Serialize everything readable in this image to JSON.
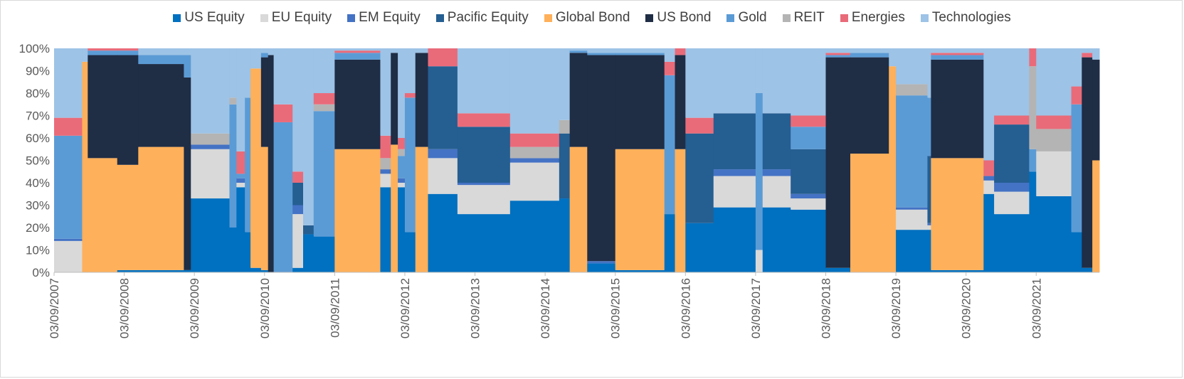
{
  "chart_data": {
    "type": "area",
    "stacked": true,
    "percent": true,
    "title": "",
    "xlabel": "",
    "ylabel": "",
    "ylim": [
      0,
      100
    ],
    "y_ticks": [
      "0%",
      "10%",
      "20%",
      "30%",
      "40%",
      "50%",
      "60%",
      "70%",
      "80%",
      "90%",
      "100%"
    ],
    "x_ticks": [
      "03/09/2007",
      "03/09/2008",
      "03/09/2009",
      "03/09/2010",
      "03/09/2011",
      "03/09/2012",
      "03/09/2013",
      "03/09/2014",
      "03/09/2015",
      "03/09/2016",
      "03/09/2017",
      "03/09/2018",
      "03/09/2019",
      "03/09/2020",
      "03/09/2021"
    ],
    "legend_position": "top",
    "grid": false,
    "series": [
      {
        "name": "US Equity",
        "color": "#0070C0"
      },
      {
        "name": "EU Equity",
        "color": "#D9D9D9"
      },
      {
        "name": "EM Equity",
        "color": "#4472C4"
      },
      {
        "name": "Pacific Equity",
        "color": "#255E91"
      },
      {
        "name": "Global Bond",
        "color": "#FFB05A"
      },
      {
        "name": "US Bond",
        "color": "#1F2D45"
      },
      {
        "name": "Gold",
        "color": "#5B9BD5"
      },
      {
        "name": "REIT",
        "color": "#B4B4B4"
      },
      {
        "name": "Energies",
        "color": "#E96B7A"
      },
      {
        "name": "Technologies",
        "color": "#9DC3E6"
      }
    ],
    "segments": [
      {
        "start": 2007.0,
        "end": 2007.4,
        "weights": [
          0,
          14,
          1,
          0,
          0,
          0,
          46,
          0,
          8,
          31
        ]
      },
      {
        "start": 2007.4,
        "end": 2007.48,
        "weights": [
          0,
          0,
          0,
          0,
          94,
          0,
          0,
          0,
          0,
          6
        ]
      },
      {
        "start": 2007.48,
        "end": 2007.9,
        "weights": [
          0,
          0,
          0,
          0,
          51,
          46,
          2,
          0,
          1,
          0
        ]
      },
      {
        "start": 2007.9,
        "end": 2008.2,
        "weights": [
          1,
          0,
          0,
          0,
          47,
          49,
          2,
          0,
          1,
          0
        ]
      },
      {
        "start": 2008.2,
        "end": 2008.85,
        "weights": [
          1,
          0,
          0,
          0,
          55,
          37,
          4,
          0,
          0,
          3
        ]
      },
      {
        "start": 2008.85,
        "end": 2008.95,
        "weights": [
          1,
          0,
          0,
          0,
          0,
          86,
          10,
          0,
          0,
          3
        ]
      },
      {
        "start": 2008.95,
        "end": 2009.5,
        "weights": [
          33,
          22,
          2,
          0,
          0,
          0,
          0,
          5,
          0,
          38
        ]
      },
      {
        "start": 2009.5,
        "end": 2009.6,
        "weights": [
          20,
          0,
          0,
          0,
          0,
          0,
          55,
          3,
          0,
          22
        ]
      },
      {
        "start": 2009.6,
        "end": 2009.72,
        "weights": [
          38,
          2,
          2,
          0,
          0,
          0,
          2,
          0,
          10,
          46
        ]
      },
      {
        "start": 2009.72,
        "end": 2009.8,
        "weights": [
          18,
          0,
          0,
          0,
          0,
          0,
          60,
          0,
          0,
          22
        ]
      },
      {
        "start": 2009.8,
        "end": 2009.95,
        "weights": [
          2,
          0,
          0,
          0,
          89,
          0,
          0,
          0,
          0,
          9
        ]
      },
      {
        "start": 2009.95,
        "end": 2010.05,
        "weights": [
          1,
          0,
          0,
          0,
          55,
          40,
          2,
          0,
          0,
          2
        ]
      },
      {
        "start": 2010.05,
        "end": 2010.13,
        "weights": [
          0,
          0,
          0,
          0,
          0,
          97,
          0,
          0,
          0,
          3
        ]
      },
      {
        "start": 2010.13,
        "end": 2010.4,
        "weights": [
          0,
          0,
          0,
          0,
          0,
          0,
          67,
          0,
          8,
          25
        ]
      },
      {
        "start": 2010.4,
        "end": 2010.55,
        "weights": [
          2,
          24,
          4,
          10,
          0,
          0,
          0,
          0,
          5,
          55
        ]
      },
      {
        "start": 2010.55,
        "end": 2010.7,
        "weights": [
          17,
          0,
          0,
          4,
          0,
          0,
          0,
          0,
          0,
          79
        ]
      },
      {
        "start": 2010.7,
        "end": 2011.0,
        "weights": [
          16,
          0,
          0,
          0,
          0,
          0,
          56,
          3,
          5,
          20
        ]
      },
      {
        "start": 2011.0,
        "end": 2011.65,
        "weights": [
          0,
          0,
          0,
          0,
          55,
          40,
          3,
          0,
          1,
          1
        ]
      },
      {
        "start": 2011.65,
        "end": 2011.8,
        "weights": [
          38,
          6,
          2,
          0,
          0,
          0,
          0,
          5,
          10,
          39
        ]
      },
      {
        "start": 2011.8,
        "end": 2011.9,
        "weights": [
          0,
          0,
          0,
          0,
          57,
          41,
          0,
          0,
          0,
          2
        ]
      },
      {
        "start": 2011.9,
        "end": 2012.0,
        "weights": [
          38,
          2,
          2,
          0,
          0,
          0,
          10,
          3,
          5,
          40
        ]
      },
      {
        "start": 2012.0,
        "end": 2012.15,
        "weights": [
          18,
          0,
          0,
          0,
          0,
          0,
          60,
          0,
          2,
          20
        ]
      },
      {
        "start": 2012.15,
        "end": 2012.33,
        "weights": [
          0,
          0,
          0,
          0,
          56,
          42,
          0,
          0,
          0,
          2
        ]
      },
      {
        "start": 2012.33,
        "end": 2012.75,
        "weights": [
          35,
          16,
          4,
          37,
          0,
          0,
          0,
          0,
          8,
          0
        ]
      },
      {
        "start": 2012.75,
        "end": 2013.5,
        "weights": [
          26,
          13,
          1,
          25,
          0,
          0,
          0,
          0,
          6,
          29
        ]
      },
      {
        "start": 2013.5,
        "end": 2014.2,
        "weights": [
          32,
          17,
          2,
          0,
          0,
          0,
          0,
          5,
          6,
          38
        ]
      },
      {
        "start": 2014.2,
        "end": 2014.35,
        "weights": [
          33,
          0,
          0,
          29,
          0,
          0,
          0,
          6,
          0,
          32
        ]
      },
      {
        "start": 2014.35,
        "end": 2014.6,
        "weights": [
          0,
          0,
          0,
          0,
          56,
          42,
          1,
          0,
          0,
          1
        ]
      },
      {
        "start": 2014.6,
        "end": 2015.0,
        "weights": [
          4,
          0,
          1,
          0,
          0,
          92,
          1,
          0,
          0,
          2
        ]
      },
      {
        "start": 2015.0,
        "end": 2015.7,
        "weights": [
          1,
          0,
          0,
          0,
          54,
          42,
          1,
          0,
          0,
          2
        ]
      },
      {
        "start": 2015.7,
        "end": 2015.85,
        "weights": [
          26,
          0,
          0,
          0,
          0,
          0,
          62,
          0,
          6,
          6
        ]
      },
      {
        "start": 2015.85,
        "end": 2016.0,
        "weights": [
          0,
          0,
          0,
          0,
          55,
          42,
          0,
          0,
          3,
          0
        ]
      },
      {
        "start": 2016.0,
        "end": 2016.4,
        "weights": [
          22,
          0,
          0,
          40,
          0,
          0,
          0,
          0,
          7,
          31
        ]
      },
      {
        "start": 2016.4,
        "end": 2017.0,
        "weights": [
          29,
          14,
          3,
          25,
          0,
          0,
          0,
          0,
          0,
          29
        ]
      },
      {
        "start": 2017.0,
        "end": 2017.1,
        "weights": [
          0,
          10,
          0,
          0,
          0,
          0,
          70,
          0,
          0,
          20
        ]
      },
      {
        "start": 2017.1,
        "end": 2017.5,
        "weights": [
          29,
          14,
          3,
          25,
          0,
          0,
          0,
          0,
          0,
          29
        ]
      },
      {
        "start": 2017.5,
        "end": 2018.0,
        "weights": [
          28,
          5,
          2,
          20,
          0,
          0,
          10,
          0,
          5,
          30
        ]
      },
      {
        "start": 2018.0,
        "end": 2018.35,
        "weights": [
          2,
          0,
          0,
          0,
          0,
          94,
          1,
          0,
          1,
          2
        ]
      },
      {
        "start": 2018.35,
        "end": 2018.9,
        "weights": [
          0,
          0,
          0,
          0,
          53,
          43,
          2,
          0,
          0,
          2
        ]
      },
      {
        "start": 2018.9,
        "end": 2019.0,
        "weights": [
          0,
          0,
          0,
          0,
          92,
          0,
          0,
          0,
          0,
          8
        ]
      },
      {
        "start": 2019.0,
        "end": 2019.45,
        "weights": [
          19,
          9,
          1,
          0,
          0,
          0,
          50,
          5,
          0,
          16
        ]
      },
      {
        "start": 2019.45,
        "end": 2019.5,
        "weights": [
          19,
          2,
          1,
          30,
          0,
          0,
          26,
          0,
          0,
          22
        ]
      },
      {
        "start": 2019.5,
        "end": 2020.25,
        "weights": [
          1,
          0,
          0,
          0,
          50,
          44,
          2,
          0,
          1,
          2
        ]
      },
      {
        "start": 2020.25,
        "end": 2020.4,
        "weights": [
          35,
          6,
          2,
          0,
          0,
          0,
          0,
          0,
          7,
          50
        ]
      },
      {
        "start": 2020.4,
        "end": 2020.9,
        "weights": [
          26,
          10,
          4,
          26,
          0,
          0,
          0,
          0,
          4,
          30
        ]
      },
      {
        "start": 2020.9,
        "end": 2021.0,
        "weights": [
          45,
          0,
          0,
          0,
          0,
          0,
          10,
          37,
          8,
          0
        ]
      },
      {
        "start": 2021.0,
        "end": 2021.5,
        "weights": [
          34,
          20,
          0,
          0,
          0,
          0,
          0,
          10,
          6,
          30
        ]
      },
      {
        "start": 2021.5,
        "end": 2021.65,
        "weights": [
          18,
          0,
          0,
          0,
          0,
          0,
          57,
          0,
          8,
          17
        ]
      },
      {
        "start": 2021.65,
        "end": 2021.8,
        "weights": [
          2,
          0,
          0,
          0,
          0,
          94,
          0,
          0,
          2,
          2
        ]
      },
      {
        "start": 2021.8,
        "end": 2021.9,
        "weights": [
          0,
          0,
          0,
          0,
          50,
          45,
          0,
          0,
          0,
          5
        ]
      }
    ]
  }
}
